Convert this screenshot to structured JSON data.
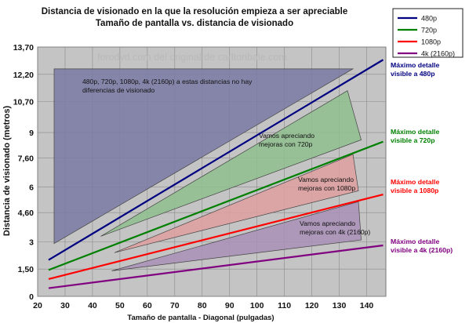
{
  "chart_data": {
    "type": "line",
    "title": "Distancia de visionado en la que la resolución empieza a ser apreciable",
    "subtitle": "Tamaño de pantalla vs. distancia de visionado",
    "xlabel": "Tamaño de pantalla - Diagonal (pulgadas)",
    "ylabel": "Distancia de visionado (metros)",
    "watermark": "forodvd.com del original de carltonbale.com",
    "xlim": [
      20,
      147
    ],
    "ylim": [
      0,
      13.7
    ],
    "x_ticks": [
      "20",
      "30",
      "40",
      "50",
      "60",
      "70",
      "80",
      "90",
      "100",
      "110",
      "120",
      "130",
      "140"
    ],
    "y_ticks": [
      "0",
      "1,50",
      "3",
      "4,60",
      "6",
      "7,60",
      "9",
      "10,70",
      "12,20",
      "13,70"
    ],
    "y_tick_values": [
      0,
      1.5,
      3,
      4.6,
      6,
      7.6,
      9,
      10.7,
      12.2,
      13.7
    ],
    "grid": true,
    "legend_position": "top-right",
    "series": [
      {
        "name": "480p",
        "color": "#000080",
        "x": [
          24,
          146
        ],
        "y": [
          2.0,
          13.0
        ],
        "right_label": [
          "Máximo detalle",
          "visible a 480p"
        ]
      },
      {
        "name": "720p",
        "color": "#008000",
        "x": [
          24,
          146
        ],
        "y": [
          1.45,
          8.5
        ],
        "right_label": [
          "Máximo detalle",
          "visible a 720p"
        ]
      },
      {
        "name": "1080p",
        "color": "#ff0000",
        "x": [
          24,
          146
        ],
        "y": [
          0.95,
          5.6
        ],
        "right_label": [
          "Máximo detalle",
          "visible a 1080p"
        ]
      },
      {
        "name": "4k (2160p)",
        "color": "#800080",
        "x": [
          24,
          146
        ],
        "y": [
          0.45,
          2.8
        ],
        "right_label": [
          "Máximo detalle",
          "visible a 4k (2160p)"
        ]
      }
    ],
    "regions": [
      {
        "color": "#7a7aa4",
        "points": [
          [
            26,
            12.5
          ],
          [
            135,
            12.5
          ],
          [
            26,
            2.9
          ]
        ],
        "label": [
          "480p, 720p, 1080p, 4k (2160p) a estas distancias no hay",
          "diferencias de visionado"
        ]
      },
      {
        "color": "#8fbf8f",
        "points": [
          [
            43,
            3.3
          ],
          [
            133,
            11.3
          ],
          [
            138,
            8.6
          ]
        ],
        "label": [
          "Vamos apreciando",
          "mejoras con 720p"
        ]
      },
      {
        "color": "#e0a0a0",
        "points": [
          [
            48,
            2.4
          ],
          [
            135,
            7.8
          ],
          [
            137,
            5.8
          ]
        ],
        "label": [
          "Vamos apreciando",
          "mejoras con 1080p"
        ]
      },
      {
        "color": "#aa90b8",
        "points": [
          [
            47,
            1.4
          ],
          [
            137,
            5.2
          ],
          [
            138,
            3.1
          ]
        ],
        "label": [
          "Vamos apreciando",
          "mejoras con 4k (2160p)"
        ]
      }
    ]
  }
}
